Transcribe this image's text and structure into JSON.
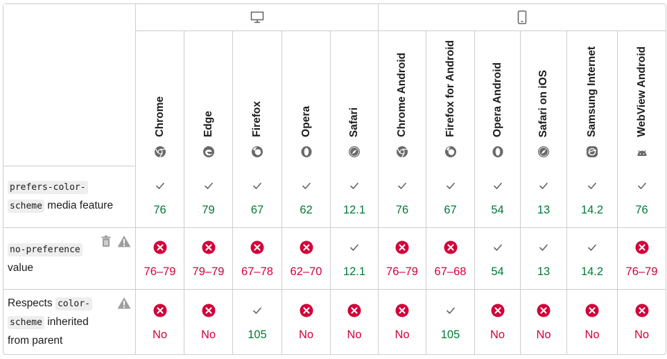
{
  "groups": [
    {
      "name": "desktop",
      "icon": "desktop-icon"
    },
    {
      "name": "mobile",
      "icon": "mobile-icon"
    }
  ],
  "browsers": [
    {
      "name": "Chrome",
      "icon": "chrome-icon"
    },
    {
      "name": "Edge",
      "icon": "edge-icon"
    },
    {
      "name": "Firefox",
      "icon": "firefox-icon"
    },
    {
      "name": "Opera",
      "icon": "opera-icon"
    },
    {
      "name": "Safari",
      "icon": "safari-icon"
    },
    {
      "name": "Chrome Android",
      "icon": "chrome-icon"
    },
    {
      "name": "Firefox for Android",
      "icon": "firefox-icon"
    },
    {
      "name": "Opera Android",
      "icon": "opera-icon"
    },
    {
      "name": "Safari on iOS",
      "icon": "safari-icon"
    },
    {
      "name": "Samsung Internet",
      "icon": "samsung-internet-icon"
    },
    {
      "name": "WebView Android",
      "icon": "android-icon"
    }
  ],
  "rows": [
    {
      "feature": {
        "code": "prefers-color-scheme",
        "code_line1": "prefers-color-",
        "code_line2": "scheme",
        "text": "media feature"
      },
      "cells": [
        {
          "status": "yes",
          "version": "76"
        },
        {
          "status": "yes",
          "version": "79"
        },
        {
          "status": "yes",
          "version": "67"
        },
        {
          "status": "yes",
          "version": "62"
        },
        {
          "status": "yes",
          "version": "12.1"
        },
        {
          "status": "yes",
          "version": "76"
        },
        {
          "status": "yes",
          "version": "67"
        },
        {
          "status": "yes",
          "version": "54"
        },
        {
          "status": "yes",
          "version": "13"
        },
        {
          "status": "yes",
          "version": "14.2"
        },
        {
          "status": "yes",
          "version": "76"
        }
      ]
    },
    {
      "feature": {
        "code": "no-preference",
        "text": "value",
        "icons": [
          "deprecated-trash-icon",
          "warning-icon"
        ]
      },
      "cells": [
        {
          "status": "no",
          "version": "76–79"
        },
        {
          "status": "no",
          "version": "79–79"
        },
        {
          "status": "no",
          "version": "67–78"
        },
        {
          "status": "no",
          "version": "62–70"
        },
        {
          "status": "yes",
          "version": "12.1"
        },
        {
          "status": "no",
          "version": "76–79"
        },
        {
          "status": "no",
          "version": "67–68"
        },
        {
          "status": "yes",
          "version": "54"
        },
        {
          "status": "yes",
          "version": "13"
        },
        {
          "status": "yes",
          "version": "14.2"
        },
        {
          "status": "no",
          "version": "76–79"
        }
      ]
    },
    {
      "feature": {
        "prefix": "Respects",
        "code_line1": "color-",
        "code_line2": "scheme",
        "suffix_line2": "inherited",
        "line3": "from parent",
        "icons": [
          "warning-icon"
        ]
      },
      "cells": [
        {
          "status": "no",
          "version": "No"
        },
        {
          "status": "no",
          "version": "No"
        },
        {
          "status": "yes",
          "version": "105"
        },
        {
          "status": "no",
          "version": "No"
        },
        {
          "status": "no",
          "version": "No"
        },
        {
          "status": "no",
          "version": "No"
        },
        {
          "status": "yes",
          "version": "105"
        },
        {
          "status": "no",
          "version": "No"
        },
        {
          "status": "no",
          "version": "No"
        },
        {
          "status": "no",
          "version": "No"
        },
        {
          "status": "no",
          "version": "No"
        }
      ]
    }
  ],
  "colors": {
    "yes": "#007936",
    "no": "#d30038",
    "border": "#cdcdcd",
    "code_bg": "#eeeeee"
  }
}
